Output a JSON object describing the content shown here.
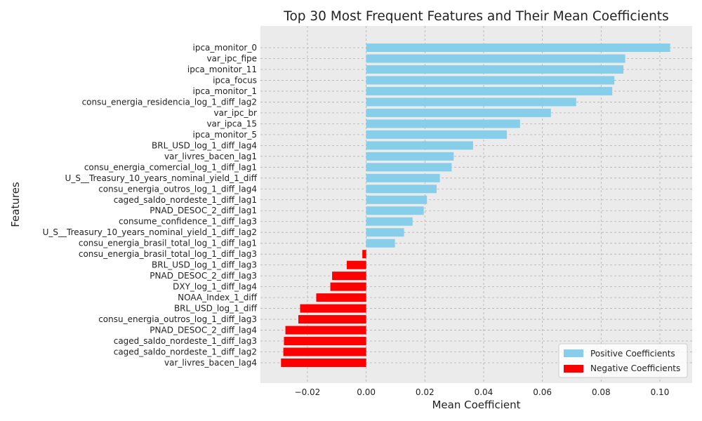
{
  "chart_data": {
    "type": "bar",
    "orientation": "horizontal",
    "title": "Top 30 Most Frequent Features and Their Mean Coefficients",
    "xlabel": "Mean Coefficient",
    "ylabel": "Features",
    "xlim": [
      -0.036,
      0.111
    ],
    "xticks": [
      -0.02,
      0.0,
      0.02,
      0.04,
      0.06,
      0.08,
      0.1
    ],
    "xtick_labels": [
      "−0.02",
      "0.00",
      "0.02",
      "0.04",
      "0.06",
      "0.08",
      "0.10"
    ],
    "grid": true,
    "legend_position": "bottom-right",
    "colors": {
      "positive": "#87CEEB",
      "negative": "#FF0000",
      "plot_background": "#EBEBEB",
      "grid": "#B0B0B0"
    },
    "series": [
      {
        "name": "Positive Coefficients",
        "color": "#87CEEB"
      },
      {
        "name": "Negative Coefficients",
        "color": "#FF0000"
      }
    ],
    "categories": [
      "ipca_monitor_0",
      "var_ipc_fipe",
      "ipca_monitor_11",
      "ipca_focus",
      "ipca_monitor_1",
      "consu_energia_residencia_log_1_diff_lag2",
      "var_ipc_br",
      "var_ipca_15",
      "ipca_monitor_5",
      "BRL_USD_log_1_diff_lag4",
      "var_livres_bacen_lag1",
      "consu_energia_comercial_log_1_diff_lag1",
      "U_S__Treasury_10_years_nominal_yield_1_diff",
      "consu_energia_outros_log_1_diff_lag4",
      "caged_saldo_nordeste_1_diff_lag1",
      "PNAD_DESOC_2_diff_lag1",
      "consume_confidence_1_diff_lag3",
      "U_S__Treasury_10_years_nominal_yield_1_diff_lag2",
      "consu_energia_brasil_total_log_1_diff_lag1",
      "consu_energia_brasil_total_log_1_diff_lag3",
      "BRL_USD_log_1_diff_lag3",
      "PNAD_DESOC_2_diff_lag3",
      "DXY_log_1_diff_lag4",
      "NOAA_Index_1_diff",
      "BRL_USD_log_1_diff",
      "consu_energia_outros_log_1_diff_lag3",
      "PNAD_DESOC_2_diff_lag4",
      "caged_saldo_nordeste_1_diff_lag3",
      "caged_saldo_nordeste_1_diff_lag2",
      "var_livres_bacen_lag4"
    ],
    "values": [
      0.1035,
      0.0882,
      0.0876,
      0.0845,
      0.0838,
      0.0715,
      0.0629,
      0.0524,
      0.0479,
      0.0364,
      0.0298,
      0.0291,
      0.0251,
      0.024,
      0.0207,
      0.0196,
      0.0158,
      0.0129,
      0.0098,
      -0.0013,
      -0.0066,
      -0.0116,
      -0.0122,
      -0.017,
      -0.0225,
      -0.0231,
      -0.0275,
      -0.028,
      -0.0282,
      -0.029
    ]
  }
}
